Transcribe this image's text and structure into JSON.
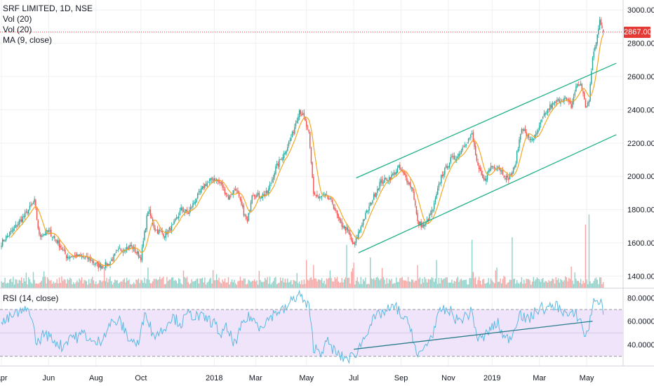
{
  "header": {
    "symbol_line": "SRF LIMITED, 1D, NSE",
    "indicators": [
      "Vol (20)",
      "Vol (20)",
      "MA (9, close)"
    ]
  },
  "rsi_label": "RSI (14, close)",
  "last_price_label": "2867.00",
  "colors": {
    "up": "#26a69a",
    "down": "#ef5350",
    "ma": "#f5a623",
    "trend": "#20b08a",
    "rsi": "#5bb8e0",
    "rsi_band": "#f0e4fb",
    "last_price": "#e53935"
  },
  "chart_data": [
    {
      "type": "candlestick",
      "title": "SRF LIMITED, 1D, NSE",
      "ylim": [
        1330,
        3060
      ],
      "yticks": [
        "3000.00",
        "2800.00",
        "2600.00",
        "2400.00",
        "2200.00",
        "2000.00",
        "1800.00",
        "1600.00",
        "1400.00"
      ],
      "ytick_values": [
        3000,
        2800,
        2600,
        2400,
        2200,
        2000,
        1800,
        1600,
        1400
      ],
      "xticks": [
        "Apr",
        "Jun",
        "Aug",
        "Oct",
        "2018",
        "Mar",
        "May",
        "Jul",
        "Sep",
        "Nov",
        "2019",
        "Mar",
        "May"
      ],
      "xtick_positions": [
        0,
        40,
        80,
        118,
        180,
        215,
        258,
        298,
        338,
        378,
        415,
        455,
        495
      ],
      "close_anchors": [
        [
          0,
          1600
        ],
        [
          10,
          1680
        ],
        [
          20,
          1770
        ],
        [
          28,
          1850
        ],
        [
          32,
          1640
        ],
        [
          40,
          1670
        ],
        [
          48,
          1600
        ],
        [
          55,
          1520
        ],
        [
          65,
          1520
        ],
        [
          75,
          1500
        ],
        [
          82,
          1460
        ],
        [
          90,
          1470
        ],
        [
          100,
          1560
        ],
        [
          110,
          1580
        ],
        [
          118,
          1510
        ],
        [
          124,
          1800
        ],
        [
          130,
          1680
        ],
        [
          138,
          1650
        ],
        [
          145,
          1700
        ],
        [
          152,
          1800
        ],
        [
          158,
          1780
        ],
        [
          165,
          1870
        ],
        [
          172,
          1950
        ],
        [
          180,
          1990
        ],
        [
          186,
          1950
        ],
        [
          192,
          1870
        ],
        [
          198,
          1930
        ],
        [
          205,
          1780
        ],
        [
          208,
          1720
        ],
        [
          212,
          1900
        ],
        [
          218,
          1880
        ],
        [
          225,
          1900
        ],
        [
          232,
          2050
        ],
        [
          240,
          2150
        ],
        [
          246,
          2250
        ],
        [
          252,
          2400
        ],
        [
          256,
          2350
        ],
        [
          260,
          2250
        ],
        [
          264,
          1900
        ],
        [
          268,
          1870
        ],
        [
          274,
          1880
        ],
        [
          280,
          1840
        ],
        [
          286,
          1720
        ],
        [
          292,
          1680
        ],
        [
          298,
          1580
        ],
        [
          305,
          1720
        ],
        [
          312,
          1830
        ],
        [
          320,
          1960
        ],
        [
          330,
          2000
        ],
        [
          336,
          2050
        ],
        [
          342,
          1990
        ],
        [
          348,
          1920
        ],
        [
          352,
          1720
        ],
        [
          358,
          1700
        ],
        [
          365,
          1800
        ],
        [
          372,
          2000
        ],
        [
          380,
          2100
        ],
        [
          386,
          2120
        ],
        [
          392,
          2200
        ],
        [
          398,
          2250
        ],
        [
          403,
          2050
        ],
        [
          408,
          1970
        ],
        [
          414,
          2060
        ],
        [
          420,
          2060
        ],
        [
          428,
          1980
        ],
        [
          434,
          2050
        ],
        [
          440,
          2300
        ],
        [
          446,
          2220
        ],
        [
          452,
          2240
        ],
        [
          458,
          2350
        ],
        [
          464,
          2420
        ],
        [
          470,
          2450
        ],
        [
          476,
          2470
        ],
        [
          482,
          2420
        ],
        [
          486,
          2540
        ],
        [
          490,
          2560
        ],
        [
          494,
          2420
        ],
        [
          497,
          2450
        ],
        [
          500,
          2720
        ],
        [
          503,
          2800
        ],
        [
          506,
          2950
        ],
        [
          509,
          2867
        ]
      ],
      "moving_average": {
        "name": "MA (9, close)",
        "period": 9
      },
      "last_price": 2867,
      "trend_channel": {
        "upper": [
          [
            300,
            1990
          ],
          [
            520,
            2680
          ]
        ],
        "lower": [
          [
            302,
            1540
          ],
          [
            520,
            2250
          ]
        ]
      }
    },
    {
      "type": "bar",
      "title": "Vol (20)",
      "note": "volume histogram overlaid at the bottom of the price pane",
      "spikes": [
        [
          124,
          0.4
        ],
        [
          258,
          0.55
        ],
        [
          264,
          0.45
        ],
        [
          292,
          0.85
        ],
        [
          298,
          0.5
        ],
        [
          312,
          0.6
        ],
        [
          352,
          0.45
        ],
        [
          368,
          0.55
        ],
        [
          398,
          0.95
        ],
        [
          432,
          1.0
        ],
        [
          482,
          0.42
        ],
        [
          494,
          1.25
        ],
        [
          497,
          1.45
        ]
      ]
    },
    {
      "type": "line",
      "title": "RSI (14, close)",
      "ylim": [
        22,
        88
      ],
      "yticks": [
        "80.0000",
        "60.0000",
        "40.0000"
      ],
      "ytick_values": [
        80,
        60,
        40
      ],
      "band": [
        30,
        70
      ],
      "mid": 50,
      "rsi_anchors": [
        [
          0,
          58
        ],
        [
          12,
          66
        ],
        [
          24,
          70
        ],
        [
          30,
          40
        ],
        [
          36,
          50
        ],
        [
          44,
          44
        ],
        [
          52,
          38
        ],
        [
          58,
          48
        ],
        [
          64,
          46
        ],
        [
          70,
          50
        ],
        [
          78,
          40
        ],
        [
          84,
          44
        ],
        [
          92,
          58
        ],
        [
          100,
          60
        ],
        [
          108,
          45
        ],
        [
          116,
          40
        ],
        [
          122,
          70
        ],
        [
          128,
          48
        ],
        [
          136,
          52
        ],
        [
          144,
          64
        ],
        [
          152,
          58
        ],
        [
          158,
          66
        ],
        [
          166,
          64
        ],
        [
          174,
          62
        ],
        [
          180,
          58
        ],
        [
          186,
          48
        ],
        [
          190,
          54
        ],
        [
          198,
          40
        ],
        [
          204,
          58
        ],
        [
          210,
          64
        ],
        [
          218,
          56
        ],
        [
          224,
          60
        ],
        [
          232,
          68
        ],
        [
          240,
          70
        ],
        [
          246,
          78
        ],
        [
          252,
          84
        ],
        [
          256,
          76
        ],
        [
          260,
          72
        ],
        [
          264,
          38
        ],
        [
          270,
          34
        ],
        [
          276,
          42
        ],
        [
          282,
          34
        ],
        [
          286,
          30
        ],
        [
          292,
          28
        ],
        [
          298,
          30
        ],
        [
          304,
          40
        ],
        [
          312,
          58
        ],
        [
          320,
          66
        ],
        [
          328,
          70
        ],
        [
          334,
          72
        ],
        [
          340,
          62
        ],
        [
          346,
          56
        ],
        [
          352,
          28
        ],
        [
          358,
          38
        ],
        [
          364,
          48
        ],
        [
          372,
          70
        ],
        [
          380,
          68
        ],
        [
          386,
          60
        ],
        [
          392,
          64
        ],
        [
          398,
          68
        ],
        [
          403,
          44
        ],
        [
          408,
          46
        ],
        [
          414,
          54
        ],
        [
          420,
          58
        ],
        [
          426,
          44
        ],
        [
          432,
          48
        ],
        [
          438,
          68
        ],
        [
          444,
          60
        ],
        [
          450,
          66
        ],
        [
          456,
          72
        ],
        [
          462,
          70
        ],
        [
          468,
          74
        ],
        [
          474,
          70
        ],
        [
          480,
          64
        ],
        [
          486,
          66
        ],
        [
          490,
          60
        ],
        [
          494,
          46
        ],
        [
          497,
          56
        ],
        [
          500,
          74
        ],
        [
          504,
          80
        ],
        [
          509,
          70
        ]
      ],
      "trend_line": [
        [
          298,
          36
        ],
        [
          500,
          60
        ]
      ]
    }
  ]
}
